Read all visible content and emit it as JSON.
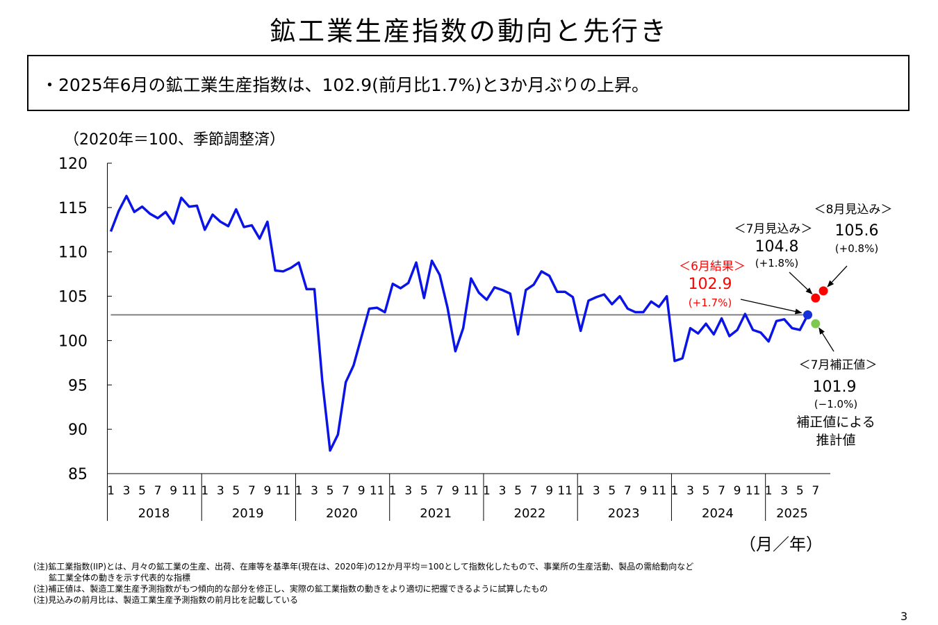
{
  "title": "鉱工業生産指数の動向と先行き",
  "summary": "・2025年6月の鉱工業生産指数は、102.9(前月比1.7%)と3か月ぶりの上昇。",
  "unit_label": "（2020年＝100、季節調整済）",
  "axis_unit": "（月／年）",
  "page_number": "3",
  "notes": [
    "(注)鉱工業指数(IIP)とは、月々の鉱工業の生産、出荷、在庫等を基準年(現在は、2020年)の12か月平均＝100として指数化したもので、事業所の生産活動、製品の需給動向など",
    "鉱工業全体の動きを示す代表的な指標",
    "(注)補正値は、製造工業生産予測指数がもつ傾向的な部分を修正し、実際の鉱工業指数の動きをより適切に把握できるように試算したもの",
    "(注)見込みの前月比は、製造工業生産予測指数の前月比を記載している"
  ],
  "colors": {
    "series": "#0a14e6",
    "reference": "#808080",
    "result": "#ff0000",
    "forecast": "#ff0000",
    "corrected": "#7ec850",
    "result_point": "#1530d8"
  },
  "annotations": {
    "june_result": {
      "label": "＜6月結果＞",
      "value": "102.9",
      "change": "(+1.7%)"
    },
    "july_forecast": {
      "label": "＜7月見込み＞",
      "value": "104.8",
      "change": "(+1.8%)"
    },
    "august_forecast": {
      "label": "＜8月見込み＞",
      "value": "105.6",
      "change": "(+0.8%)"
    },
    "july_corrected": {
      "label": "＜7月補正値＞",
      "value": "101.9",
      "change": "(−1.0%)",
      "note_line1": "補正値による",
      "note_line2": "推計値"
    }
  },
  "chart_data": {
    "type": "line",
    "ylim": [
      85,
      120
    ],
    "yticks": [
      85,
      90,
      95,
      100,
      105,
      110,
      115,
      120
    ],
    "month_tick_labels": [
      "1",
      "3",
      "5",
      "7",
      "9",
      "11"
    ],
    "years": [
      "2018",
      "2019",
      "2020",
      "2021",
      "2022",
      "2023",
      "2024",
      "2025"
    ],
    "reference_value": 102.9,
    "series": [
      {
        "start": "2018-01",
        "values": [
          112.3,
          114.6,
          116.3,
          114.5,
          115.1,
          114.3,
          113.8,
          114.5,
          113.2,
          116.1,
          115.1,
          115.2,
          112.5,
          114.2,
          113.4,
          112.9,
          114.8,
          112.8,
          113.0,
          111.5,
          113.4,
          107.9,
          107.8,
          108.2,
          108.8,
          105.8,
          105.8,
          95.5,
          87.6,
          89.4,
          95.3,
          97.2,
          100.4,
          103.6,
          103.7,
          103.2,
          106.4,
          105.9,
          106.5,
          108.8,
          104.8,
          109.0,
          107.4,
          103.7,
          98.8,
          101.4,
          107.0,
          105.4,
          104.6,
          106.0,
          105.7,
          105.3,
          100.7,
          105.7,
          106.3,
          107.8,
          107.3,
          105.5,
          105.5,
          104.9,
          101.1,
          104.5,
          104.9,
          105.2,
          104.1,
          105.0,
          103.6,
          103.2,
          103.2,
          104.4,
          103.8,
          105.0,
          97.7,
          98.0,
          101.4,
          100.8,
          101.9,
          100.7,
          102.5,
          100.5,
          101.2,
          103.0,
          101.2,
          100.9,
          99.9,
          102.2,
          102.4,
          101.4,
          101.2,
          102.9
        ]
      }
    ],
    "points": [
      {
        "name": "6月結果",
        "x": "2025-06",
        "y": 102.9
      },
      {
        "name": "7月見込み",
        "x": "2025-07",
        "y": 104.8
      },
      {
        "name": "8月見込み",
        "x": "2025-08",
        "y": 105.6
      },
      {
        "name": "7月補正値",
        "x": "2025-07",
        "y": 101.9
      }
    ]
  }
}
